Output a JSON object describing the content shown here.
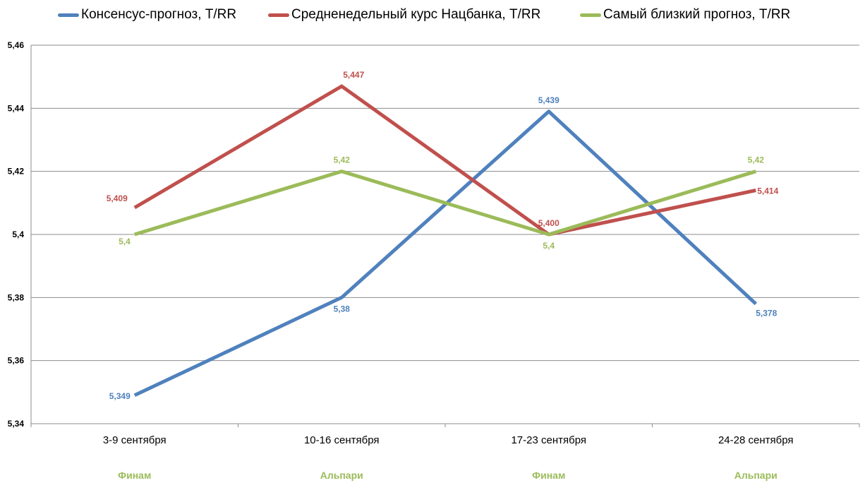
{
  "chart_data": {
    "type": "line",
    "categories": [
      "3-9 сентября",
      "10-16 сентября",
      "17-23 сентября",
      "24-28 сентября"
    ],
    "sublabels": [
      "Финам",
      "Альпари",
      "Финам",
      "Альпари"
    ],
    "sublabel_color": "#9bbb59",
    "ylim": [
      5.34,
      5.46
    ],
    "yticks": [
      "5,34",
      "5,36",
      "5,38",
      "5,4",
      "5,42",
      "5,44",
      "5,46"
    ],
    "ytick_values": [
      5.34,
      5.36,
      5.38,
      5.4,
      5.42,
      5.44,
      5.46
    ],
    "grid": true,
    "legend_position": "top",
    "series": [
      {
        "name": "Консенсус-прогноз,  T/RR",
        "color": "#4f81bd",
        "values": [
          5.349,
          5.38,
          5.439,
          5.378
        ],
        "labels": [
          "5,349",
          "5,38",
          "5,439",
          "5,378"
        ],
        "label_pos": [
          "left",
          "below",
          "above",
          "below-right"
        ]
      },
      {
        "name": "Средненедельный  курс Нацбанка, T/RR",
        "color": "#c0504d",
        "values": [
          5.4085,
          5.447,
          5.4,
          5.414
        ],
        "labels": [
          "5,409",
          "5,447",
          "5,400",
          "5,414"
        ],
        "label_pos": [
          "above-left",
          "above-right",
          "above",
          "right"
        ]
      },
      {
        "name": "Самый близкий прогноз, T/RR",
        "color": "#9bbb59",
        "values": [
          5.4,
          5.42,
          5.4,
          5.42
        ],
        "labels": [
          "5,4",
          "5,42",
          "5,4",
          "5,42"
        ],
        "label_pos": [
          "below-left",
          "above",
          "below",
          "above"
        ]
      }
    ]
  }
}
